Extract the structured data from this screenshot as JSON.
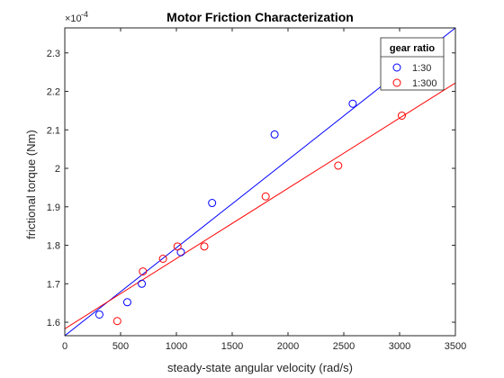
{
  "chart_data": {
    "type": "scatter",
    "title": "Motor Friction Characterization",
    "xlabel": "steady-state angular velocity (rad/s)",
    "ylabel": "frictional torque (Nm)",
    "y_exponent_label": "×10",
    "y_exponent_power": "-4",
    "xlim": [
      0,
      3500
    ],
    "ylim": [
      1.565,
      2.365
    ],
    "x_ticks": [
      0,
      500,
      1000,
      1500,
      2000,
      2500,
      3000,
      3500
    ],
    "y_ticks": [
      1.6,
      1.7,
      1.8,
      1.9,
      2.0,
      2.1,
      2.2,
      2.3
    ],
    "x_tick_labels": [
      "0",
      "500",
      "1000",
      "1500",
      "2000",
      "2500",
      "3000",
      "3500"
    ],
    "y_tick_labels": [
      "1.6",
      "1.7",
      "1.8",
      "1.9",
      "2",
      "2.1",
      "2.2",
      "2.3"
    ],
    "grid": false,
    "legend": {
      "title": "gear ratio",
      "position": "top-right"
    },
    "series": [
      {
        "name": "1:30",
        "color": "#0000ff",
        "points": [
          {
            "x": 310,
            "y": 1.62
          },
          {
            "x": 560,
            "y": 1.652
          },
          {
            "x": 690,
            "y": 1.7
          },
          {
            "x": 1040,
            "y": 1.782
          },
          {
            "x": 1320,
            "y": 1.91
          },
          {
            "x": 1880,
            "y": 2.088
          },
          {
            "x": 2580,
            "y": 2.168
          }
        ],
        "fit_line": [
          {
            "x": 0,
            "y": 1.565
          },
          {
            "x": 3500,
            "y": 2.365
          }
        ]
      },
      {
        "name": "1:300",
        "color": "#ff0000",
        "points": [
          {
            "x": 470,
            "y": 1.603
          },
          {
            "x": 700,
            "y": 1.732
          },
          {
            "x": 880,
            "y": 1.765
          },
          {
            "x": 1010,
            "y": 1.797
          },
          {
            "x": 1250,
            "y": 1.797
          },
          {
            "x": 1800,
            "y": 1.927
          },
          {
            "x": 2450,
            "y": 2.007
          },
          {
            "x": 3020,
            "y": 2.137
          }
        ],
        "fit_line": [
          {
            "x": 0,
            "y": 1.583
          },
          {
            "x": 3500,
            "y": 2.222
          }
        ]
      }
    ]
  }
}
